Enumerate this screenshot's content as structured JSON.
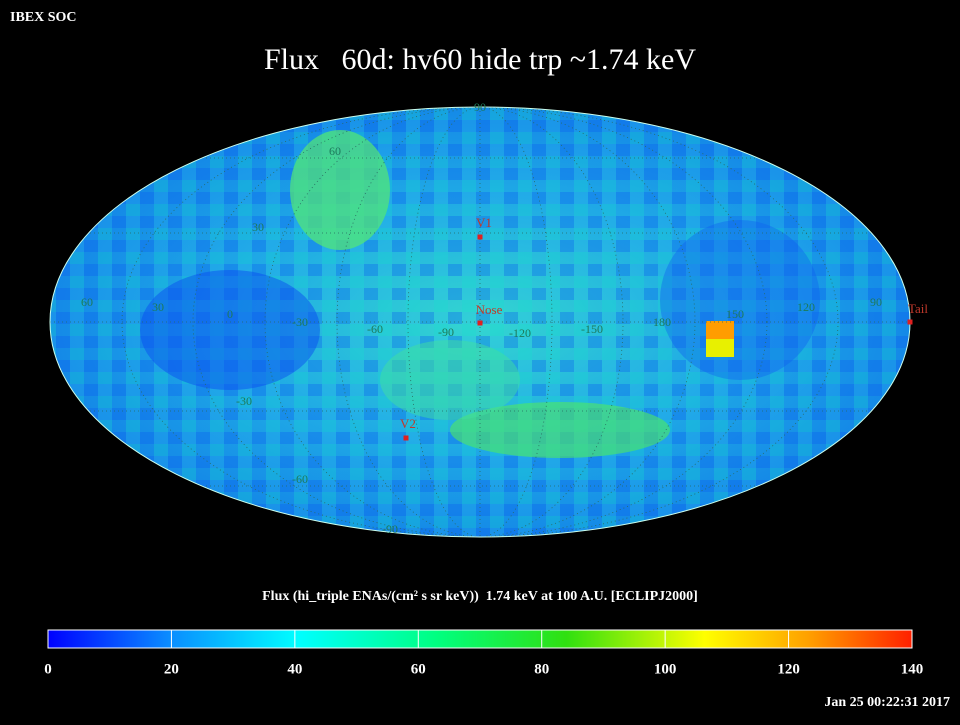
{
  "header": {
    "app": "IBEX SOC",
    "title": "Flux   60d: hv60 hide trp ~1.74 keV"
  },
  "map": {
    "grid_labels": [
      "90",
      "60",
      "30",
      "60",
      "30",
      "0",
      "-30",
      "-60",
      "-90",
      "-120",
      "-150",
      "180",
      "150",
      "120",
      "90",
      "-30",
      "-60",
      "-90"
    ],
    "markers": [
      "V1",
      "Nose",
      "V2",
      "Tail"
    ]
  },
  "colorbar": {
    "label": "Flux (hi_triple ENAs/(cm² s sr keV))  1.74 keV at 100 A.U. [ECLIPJ2000]",
    "lim": [
      0,
      140
    ],
    "ticks": [
      0,
      20,
      40,
      60,
      80,
      100,
      120,
      140
    ]
  },
  "timestamp": "Jan 25 00:22:31 2017"
}
